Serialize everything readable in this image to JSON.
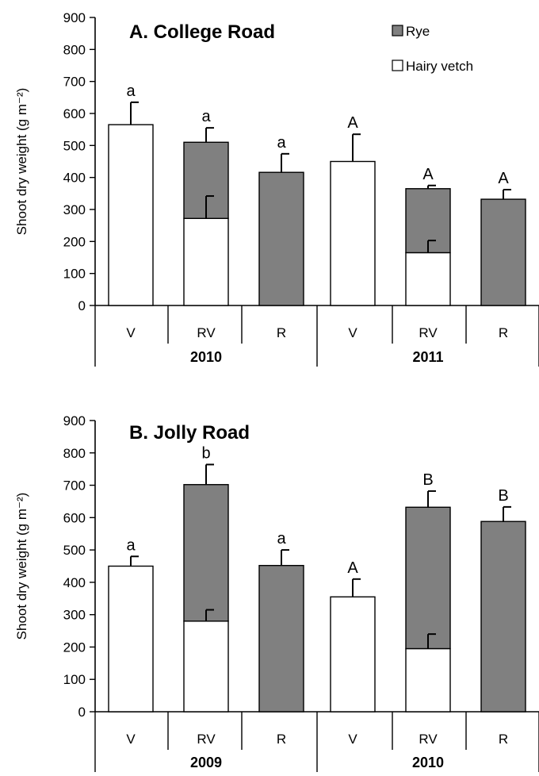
{
  "chart_data": [
    {
      "type": "bar",
      "stacked": true,
      "title": "A. College Road",
      "ylabel": "Shoot dry weight (g m⁻²)",
      "ylim": [
        0,
        900
      ],
      "yticks": [
        0,
        100,
        200,
        300,
        400,
        500,
        600,
        700,
        800,
        900
      ],
      "legend": {
        "placement": "top-right",
        "entries": [
          {
            "name": "Rye",
            "color": "#808080"
          },
          {
            "name": "Hairy vetch",
            "color": "#ffffff"
          }
        ]
      },
      "groups": [
        {
          "label": "2010",
          "categories": [
            "V",
            "RV",
            "R"
          ]
        },
        {
          "label": "2011",
          "categories": [
            "V",
            "RV",
            "R"
          ]
        }
      ],
      "bars": [
        {
          "category": "V",
          "group": "2010",
          "hairy_vetch": 565,
          "rye": 0,
          "vetch_err": 70,
          "total_err": 70,
          "letter": "a"
        },
        {
          "category": "RV",
          "group": "2010",
          "hairy_vetch": 272,
          "rye": 238,
          "vetch_err": 70,
          "total_err": 45,
          "letter": "a"
        },
        {
          "category": "R",
          "group": "2010",
          "hairy_vetch": 0,
          "rye": 416,
          "vetch_err": 0,
          "total_err": 58,
          "letter": "a"
        },
        {
          "category": "V",
          "group": "2011",
          "hairy_vetch": 450,
          "rye": 0,
          "vetch_err": 85,
          "total_err": 85,
          "letter": "A"
        },
        {
          "category": "RV",
          "group": "2011",
          "hairy_vetch": 165,
          "rye": 200,
          "vetch_err": 38,
          "total_err": 10,
          "letter": "A"
        },
        {
          "category": "R",
          "group": "2011",
          "hairy_vetch": 0,
          "rye": 332,
          "vetch_err": 0,
          "total_err": 30,
          "letter": "A"
        }
      ]
    },
    {
      "type": "bar",
      "stacked": true,
      "title": "B. Jolly Road",
      "ylabel": "Shoot dry weight (g m⁻²)",
      "ylim": [
        0,
        900
      ],
      "yticks": [
        0,
        100,
        200,
        300,
        400,
        500,
        600,
        700,
        800,
        900
      ],
      "groups": [
        {
          "label": "2009",
          "categories": [
            "V",
            "RV",
            "R"
          ]
        },
        {
          "label": "2010",
          "categories": [
            "V",
            "RV",
            "R"
          ]
        }
      ],
      "bars": [
        {
          "category": "V",
          "group": "2009",
          "hairy_vetch": 450,
          "rye": 0,
          "vetch_err": 30,
          "total_err": 30,
          "letter": "a"
        },
        {
          "category": "RV",
          "group": "2009",
          "hairy_vetch": 280,
          "rye": 422,
          "vetch_err": 35,
          "total_err": 62,
          "letter": "b"
        },
        {
          "category": "R",
          "group": "2009",
          "hairy_vetch": 0,
          "rye": 452,
          "vetch_err": 0,
          "total_err": 48,
          "letter": "a"
        },
        {
          "category": "V",
          "group": "2010",
          "hairy_vetch": 355,
          "rye": 0,
          "vetch_err": 55,
          "total_err": 55,
          "letter": "A"
        },
        {
          "category": "RV",
          "group": "2010",
          "hairy_vetch": 195,
          "rye": 437,
          "vetch_err": 45,
          "total_err": 50,
          "letter": "B"
        },
        {
          "category": "R",
          "group": "2010",
          "hairy_vetch": 0,
          "rye": 588,
          "vetch_err": 0,
          "total_err": 45,
          "letter": "B"
        }
      ]
    }
  ]
}
